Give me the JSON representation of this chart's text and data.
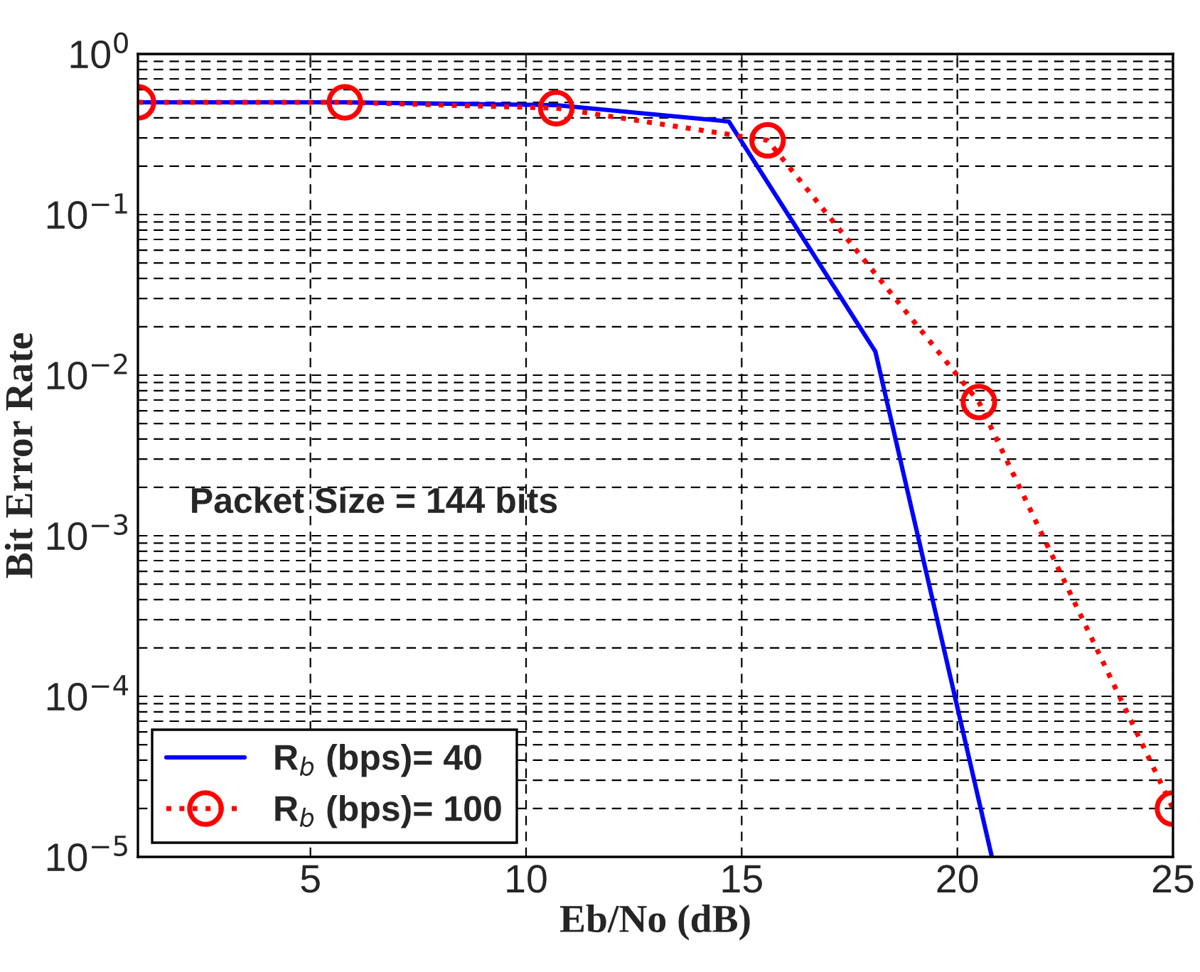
{
  "chart_data": {
    "type": "line",
    "xlabel": "Eb/No (dB)",
    "ylabel": "Bit Error Rate",
    "log": "y",
    "grid": true,
    "legend": "bottom left",
    "xlim": [
      1,
      25
    ],
    "xticks": [
      5,
      10,
      15,
      20,
      25
    ],
    "ylim": [
      1e-05,
      1
    ],
    "yticks": [
      {
        "value": 1e-05,
        "label": "10$^{−5}$"
      },
      {
        "value": 0.0001,
        "label": "10$^{−4}$"
      },
      {
        "value": 0.001,
        "label": "10$^{−3}$"
      },
      {
        "value": 0.01,
        "label": "10$^{−2}$"
      },
      {
        "value": 0.1,
        "label": "10$^{−1}$"
      },
      {
        "value": 1,
        "label": "10$^{0}$"
      }
    ],
    "annotations": [
      "Packet Size = 144 bits"
    ],
    "series": [
      {
        "name": "R$_{b}$ (bps)= 40",
        "color": "#0000ff",
        "line_style": "solid",
        "marker": "none",
        "x": [
          1,
          5.8,
          10.7,
          14.7,
          18.1,
          20.8
        ],
        "values": [
          0.5,
          0.5,
          0.48,
          0.38,
          0.014,
          1e-05
        ]
      },
      {
        "name": "R$_{b}$ (bps)= 100",
        "color": "#ff0000",
        "line_style": "dotted",
        "marker": "circle",
        "x": [
          1,
          5.8,
          10.7,
          15.6,
          20.5,
          25
        ],
        "values": [
          0.5,
          0.5,
          0.46,
          0.29,
          0.0068,
          2e-05
        ]
      }
    ]
  }
}
